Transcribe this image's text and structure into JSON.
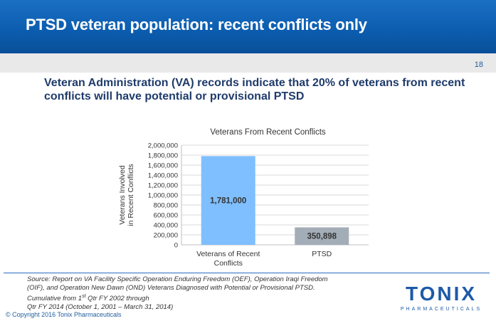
{
  "header": {
    "title": "PTSD veteran population: recent conflicts only"
  },
  "page_number": "18",
  "lead_text": "Veteran Administration  (VA) records indicate that 20% of veterans from recent conflicts  will have potential  or provisional PTSD",
  "chart_data": {
    "type": "bar",
    "title": "Veterans From Recent Conflicts",
    "ylabel_lines": [
      "Veterans Involved",
      "in Recent Conflicts"
    ],
    "xlabel": "",
    "categories": [
      "Veterans of Recent Conflicts",
      "PTSD"
    ],
    "category_lines": [
      [
        "Veterans of Recent",
        "Conflicts"
      ],
      [
        "PTSD"
      ]
    ],
    "values": [
      1781000,
      350898
    ],
    "value_labels": [
      "1,781,000",
      "350,898"
    ],
    "ylim": [
      0,
      2000000
    ],
    "yticks": [
      "0",
      "200,000",
      "400,000",
      "600,000",
      "800,000",
      "1,000,000",
      "1,200,000",
      "1,400,000",
      "1,600,000",
      "1,800,000",
      "2,000,000"
    ],
    "grid": true,
    "colors": [
      "#7fbfff",
      "#a3adb7"
    ]
  },
  "source": {
    "line1": "Source:  Report on VA Facility Specific Operation Enduring  Freedom (OEF), Operation Iraqi Freedom",
    "line2": "(OIF), and Operation New Dawn (OND) Veterans Diagnosed with Potential or Provisional PTSD.",
    "line3_prefix": "Cumulative from 1",
    "line3_sup": "st",
    "line3_suffix": " Qtr FY 2002 through",
    "line4": "Qtr FY 2014 (October 1, 2001 – March 31, 2014)"
  },
  "copyright": "© Copyright 2016 Tonix Pharmaceuticals",
  "logo": {
    "word": "TONIX",
    "tagline": "PHARMACEUTICALS"
  }
}
